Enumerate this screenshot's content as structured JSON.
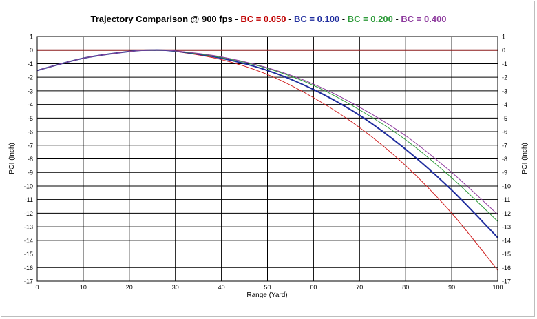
{
  "chart_data": {
    "type": "line",
    "title": {
      "prefix": "Trajectory Comparison @ 900 fps",
      "separator": " - ",
      "parts": [
        {
          "text": "BC = 0.050",
          "color": "#c00000"
        },
        {
          "text": "BC = 0.100",
          "color": "#1f2d9e"
        },
        {
          "text": "BC = 0.200",
          "color": "#2e9b3a"
        },
        {
          "text": "BC = 0.400",
          "color": "#8e3b9e"
        }
      ]
    },
    "xlabel": "Range (Yard)",
    "ylabel_left": "POI (Inch)",
    "ylabel_right": "POI (Inch)",
    "xlim": [
      0,
      100
    ],
    "ylim": [
      -17,
      1
    ],
    "xticks": [
      0,
      10,
      20,
      30,
      40,
      50,
      60,
      70,
      80,
      90,
      100
    ],
    "yticks": [
      1,
      0,
      -1,
      -2,
      -3,
      -4,
      -5,
      -6,
      -7,
      -8,
      -9,
      -10,
      -11,
      -12,
      -13,
      -14,
      -15,
      -16,
      -17
    ],
    "grid": true,
    "x": [
      0,
      10,
      20,
      25,
      30,
      40,
      50,
      60,
      70,
      80,
      90,
      100
    ],
    "reference_line": {
      "y": 0,
      "color": "#8b1a1a"
    },
    "series": [
      {
        "name": "BC = 0.050",
        "color": "#d02020",
        "width": 1,
        "values": [
          -1.5,
          -0.6,
          -0.1,
          0,
          -0.1,
          -0.7,
          -1.8,
          -3.5,
          -5.7,
          -8.5,
          -12.0,
          -16.2
        ]
      },
      {
        "name": "BC = 0.100",
        "color": "#1f2d9e",
        "width": 2,
        "values": [
          -1.5,
          -0.6,
          -0.1,
          0,
          -0.08,
          -0.6,
          -1.5,
          -2.9,
          -4.8,
          -7.3,
          -10.3,
          -13.8
        ]
      },
      {
        "name": "BC = 0.200",
        "color": "#2e9b3a",
        "width": 1,
        "values": [
          -1.5,
          -0.6,
          -0.1,
          0,
          -0.07,
          -0.55,
          -1.35,
          -2.6,
          -4.4,
          -6.6,
          -9.4,
          -12.6
        ]
      },
      {
        "name": "BC = 0.400",
        "color": "#8e3b9e",
        "width": 1,
        "values": [
          -1.5,
          -0.6,
          -0.1,
          0,
          -0.06,
          -0.5,
          -1.3,
          -2.5,
          -4.2,
          -6.3,
          -9.0,
          -12.1
        ]
      }
    ]
  }
}
